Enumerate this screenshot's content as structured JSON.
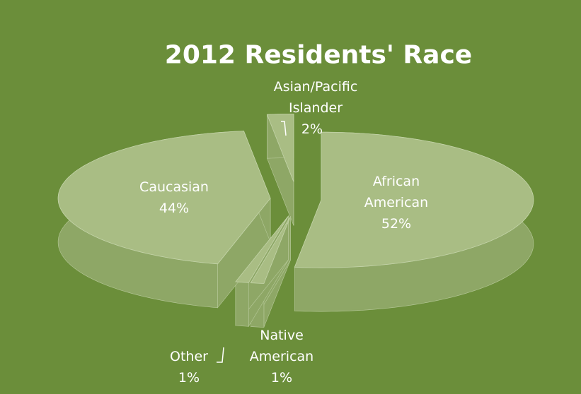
{
  "chart_data": {
    "type": "pie",
    "title": "2012 Residents' Race",
    "categories": [
      "African American",
      "Native American",
      "Other",
      "Caucasian",
      "Asian/Pacific Islander"
    ],
    "values": [
      52,
      1,
      1,
      44,
      2
    ],
    "value_labels": [
      "52%",
      "1%",
      "1%",
      "44%",
      "2%"
    ],
    "color": "#a9bd84",
    "side_color": "#8ea766",
    "exploded": true
  }
}
